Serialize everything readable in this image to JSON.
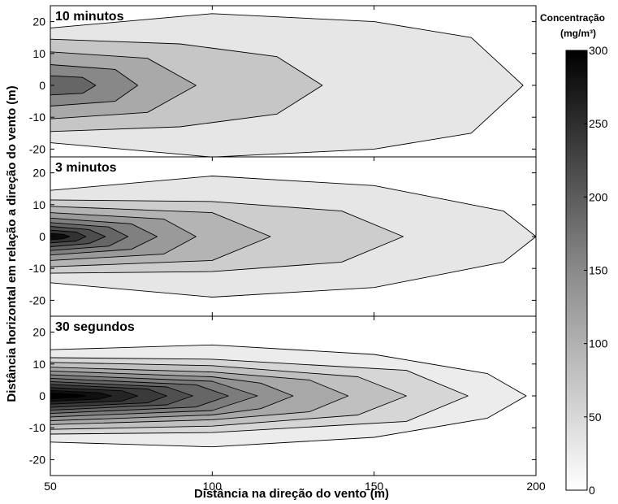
{
  "chart_data": {
    "type": "contour",
    "title": "",
    "xlabel": "Distância na direção do vento (m)",
    "ylabel": "Distância horizontal em relação a direção do vento (m)",
    "xlim": [
      50,
      200
    ],
    "ylim": [
      -25,
      25
    ],
    "xticks": [
      "50",
      "100",
      "150",
      "200"
    ],
    "yticks": [
      "20",
      "10",
      "0",
      "-10",
      "-20"
    ],
    "colorbar": {
      "title_line1": "Concentração",
      "title_line2": "(mg/m³)",
      "range": [
        0,
        300
      ],
      "ticks": [
        "0",
        "50",
        "100",
        "150",
        "200",
        "250",
        "300"
      ],
      "colormap": "white-to-black grayscale"
    },
    "panels": [
      {
        "title": "10 minutos",
        "contours": [
          {
            "level_fill": "#e6e6e6",
            "tip_x": 196,
            "half_width_at_x": [
              [
                50,
                18
              ],
              [
                100,
                22.5
              ],
              [
                150,
                20
              ],
              [
                180,
                15
              ],
              [
                196,
                0
              ]
            ]
          },
          {
            "level_fill": "#c6c6c6",
            "tip_x": 134,
            "half_width_at_x": [
              [
                50,
                14.5
              ],
              [
                90,
                13
              ],
              [
                120,
                9
              ],
              [
                134,
                0
              ]
            ]
          },
          {
            "level_fill": "#a9a9a9",
            "tip_x": 95,
            "half_width_at_x": [
              [
                50,
                10.5
              ],
              [
                80,
                8.5
              ],
              [
                95,
                0
              ]
            ]
          },
          {
            "level_fill": "#888888",
            "tip_x": 77,
            "half_width_at_x": [
              [
                50,
                6.5
              ],
              [
                70,
                5
              ],
              [
                77,
                0
              ]
            ]
          },
          {
            "level_fill": "#666666",
            "tip_x": 64,
            "half_width_at_x": [
              [
                50,
                3
              ],
              [
                60,
                2.5
              ],
              [
                64,
                0
              ]
            ]
          }
        ]
      },
      {
        "title": "3 minutos",
        "contours": [
          {
            "level_fill": "#e6e6e6",
            "tip_x": 200,
            "half_width_at_x": [
              [
                50,
                14.5
              ],
              [
                100,
                19
              ],
              [
                150,
                16
              ],
              [
                190,
                8
              ],
              [
                200,
                0
              ]
            ]
          },
          {
            "level_fill": "#cdcdcd",
            "tip_x": 159,
            "half_width_at_x": [
              [
                50,
                11.5
              ],
              [
                100,
                11
              ],
              [
                140,
                8
              ],
              [
                159,
                0
              ]
            ]
          },
          {
            "level_fill": "#b4b4b4",
            "tip_x": 118,
            "half_width_at_x": [
              [
                50,
                9.5
              ],
              [
                100,
                7.5
              ],
              [
                118,
                0
              ]
            ]
          },
          {
            "level_fill": "#9a9a9a",
            "tip_x": 95,
            "half_width_at_x": [
              [
                50,
                7.5
              ],
              [
                85,
                5.5
              ],
              [
                95,
                0
              ]
            ]
          },
          {
            "level_fill": "#808080",
            "tip_x": 83,
            "half_width_at_x": [
              [
                50,
                5.8
              ],
              [
                75,
                4
              ],
              [
                83,
                0
              ]
            ]
          },
          {
            "level_fill": "#666666",
            "tip_x": 74,
            "half_width_at_x": [
              [
                50,
                4.4
              ],
              [
                68,
                3
              ],
              [
                74,
                0
              ]
            ]
          },
          {
            "level_fill": "#4d4d4d",
            "tip_x": 67,
            "half_width_at_x": [
              [
                50,
                3.2
              ],
              [
                62,
                2.2
              ],
              [
                67,
                0
              ]
            ]
          },
          {
            "level_fill": "#333333",
            "tip_x": 61,
            "half_width_at_x": [
              [
                50,
                2
              ],
              [
                58,
                1.4
              ],
              [
                61,
                0
              ]
            ]
          },
          {
            "level_fill": "#0d0d0d",
            "tip_x": 56,
            "half_width_at_x": [
              [
                50,
                1
              ],
              [
                54,
                0.7
              ],
              [
                56,
                0
              ]
            ]
          }
        ]
      },
      {
        "title": "30 segundos",
        "contours": [
          {
            "level_fill": "#ececec",
            "tip_x": 197,
            "half_width_at_x": [
              [
                50,
                14.5
              ],
              [
                100,
                16
              ],
              [
                150,
                13
              ],
              [
                185,
                7
              ],
              [
                197,
                0
              ]
            ]
          },
          {
            "level_fill": "#d6d6d6",
            "tip_x": 179,
            "half_width_at_x": [
              [
                50,
                12
              ],
              [
                100,
                11.5
              ],
              [
                160,
                8
              ],
              [
                179,
                0
              ]
            ]
          },
          {
            "level_fill": "#c0c0c0",
            "tip_x": 160,
            "half_width_at_x": [
              [
                50,
                10.5
              ],
              [
                100,
                9.5
              ],
              [
                145,
                6
              ],
              [
                160,
                0
              ]
            ]
          },
          {
            "level_fill": "#a8a8a8",
            "tip_x": 142,
            "half_width_at_x": [
              [
                50,
                9
              ],
              [
                100,
                7.5
              ],
              [
                130,
                5
              ],
              [
                142,
                0
              ]
            ]
          },
          {
            "level_fill": "#929292",
            "tip_x": 125,
            "half_width_at_x": [
              [
                50,
                7.8
              ],
              [
                100,
                6
              ],
              [
                115,
                4
              ],
              [
                125,
                0
              ]
            ]
          },
          {
            "level_fill": "#7c7c7c",
            "tip_x": 114,
            "half_width_at_x": [
              [
                50,
                6.6
              ],
              [
                100,
                4.6
              ],
              [
                114,
                0
              ]
            ]
          },
          {
            "level_fill": "#666666",
            "tip_x": 105,
            "half_width_at_x": [
              [
                50,
                5.5
              ],
              [
                95,
                3.5
              ],
              [
                105,
                0
              ]
            ]
          },
          {
            "level_fill": "#505050",
            "tip_x": 94,
            "half_width_at_x": [
              [
                50,
                4.5
              ],
              [
                86,
                2.8
              ],
              [
                94,
                0
              ]
            ]
          },
          {
            "level_fill": "#3a3a3a",
            "tip_x": 86,
            "half_width_at_x": [
              [
                50,
                3.6
              ],
              [
                80,
                2.2
              ],
              [
                86,
                0
              ]
            ]
          },
          {
            "level_fill": "#252525",
            "tip_x": 77,
            "half_width_at_x": [
              [
                50,
                2.6
              ],
              [
                72,
                1.6
              ],
              [
                77,
                0
              ]
            ]
          },
          {
            "level_fill": "#101010",
            "tip_x": 69,
            "half_width_at_x": [
              [
                50,
                1.7
              ],
              [
                65,
                1
              ],
              [
                69,
                0
              ]
            ]
          },
          {
            "level_fill": "#000000",
            "tip_x": 61,
            "half_width_at_x": [
              [
                50,
                0.9
              ],
              [
                58,
                0.5
              ],
              [
                61,
                0
              ]
            ]
          }
        ]
      }
    ]
  }
}
